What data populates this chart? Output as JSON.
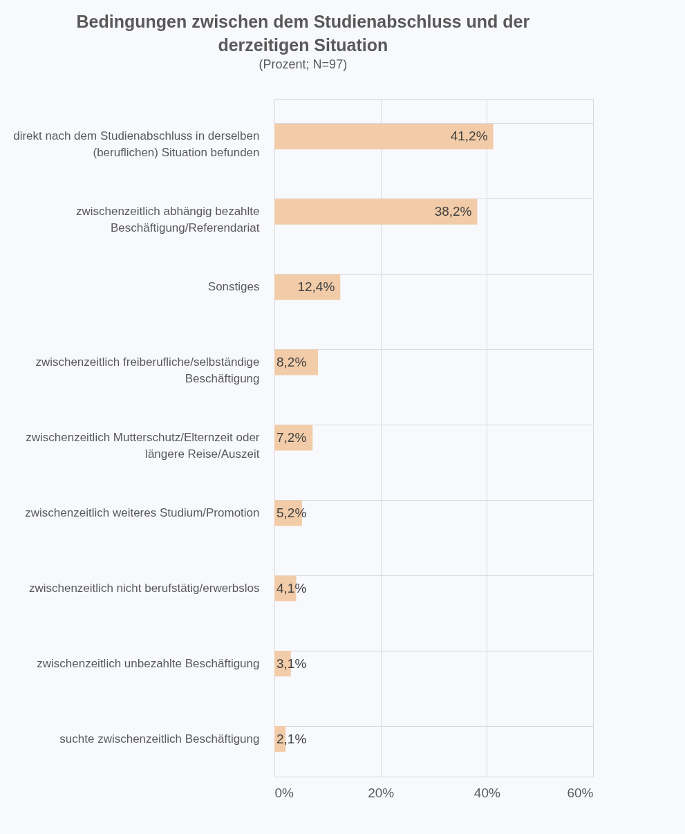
{
  "chart_data": {
    "type": "bar",
    "orientation": "horizontal",
    "title": "Bedingungen zwischen dem Studienabschluss und der derzeitigen Situation",
    "subtitle": "(Prozent; N=97)",
    "categories": [
      "direkt nach dem Studienabschluss in derselben (beruflichen) Situation befunden",
      "zwischenzeitlich abhängig bezahlte Beschäftigung/Referendariat",
      "Sonstiges",
      "zwischenzeitlich freiberufliche/selbständige Beschäftigung",
      "zwischenzeitlich Mutterschutz/Elternzeit oder längere Reise/Auszeit",
      "zwischenzeitlich weiteres Studium/Promotion",
      "zwischenzeitlich nicht berufstätig/erwerbslos",
      "zwischenzeitlich unbezahlte Beschäftigung",
      "suchte zwischenzeitlich Beschäftigung"
    ],
    "values": [
      41.2,
      38.2,
      12.4,
      8.2,
      7.2,
      5.2,
      4.1,
      3.1,
      2.1
    ],
    "value_labels": [
      "41,2%",
      "38,2%",
      "12,4%",
      "8,2%",
      "7,2%",
      "5,2%",
      "4,1%",
      "3,1%",
      "2,1%"
    ],
    "color": "#f2cca8",
    "xlim": [
      0,
      60
    ],
    "xticks": [
      {
        "value": 0,
        "label": "0%"
      },
      {
        "value": 20,
        "label": "20%"
      },
      {
        "value": 40,
        "label": "40%"
      },
      {
        "value": 60,
        "label": "60%"
      }
    ],
    "grid": true
  }
}
